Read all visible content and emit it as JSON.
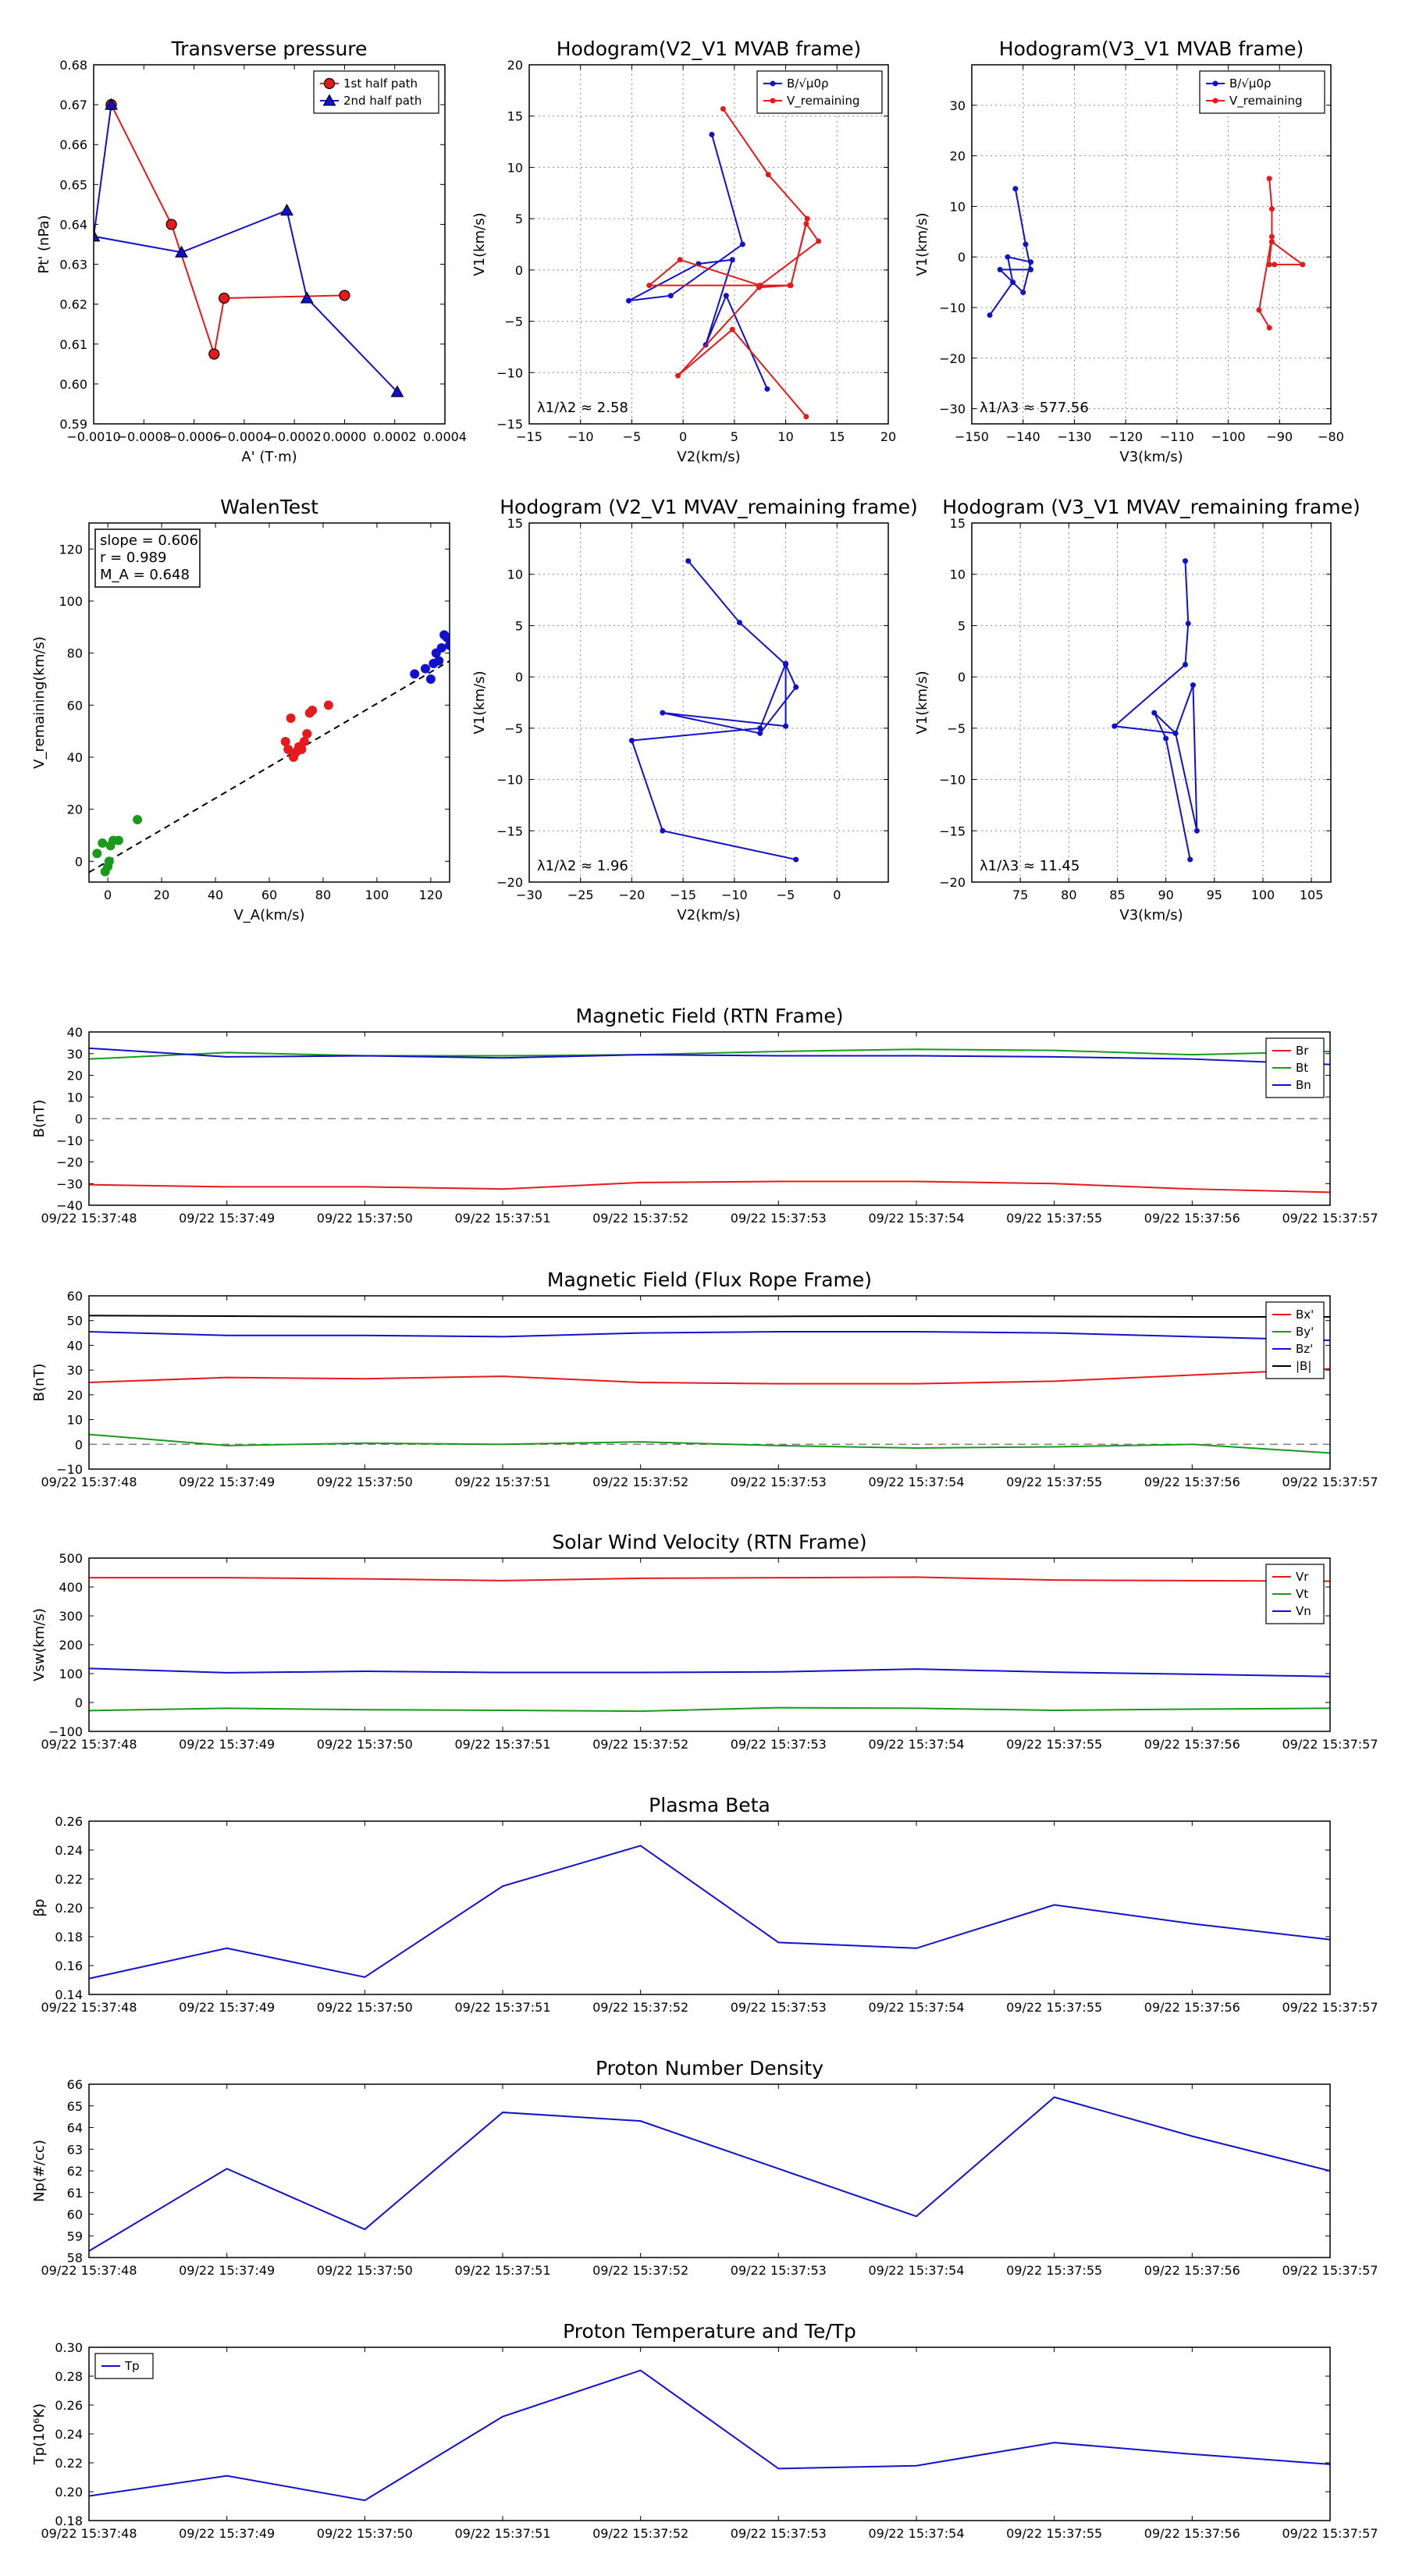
{
  "chart_data": [
    {
      "id": "transverse-pressure",
      "type": "line",
      "title": "Transverse pressure",
      "xlabel": "A' (T·m)",
      "ylabel": "Pt' (nPa)",
      "xlim": [
        -0.001,
        0.0004
      ],
      "ylim": [
        0.59,
        0.68
      ],
      "xticks": [
        -0.001,
        -0.0008,
        -0.0006,
        -0.0004,
        -0.0002,
        0.0,
        0.0002,
        0.0004
      ],
      "xtick_labels": [
        "−0.0010",
        "−0.0008",
        "−0.0006",
        "−0.0004",
        "−0.0002",
        "0.0000",
        "0.0002",
        "0.0004"
      ],
      "yticks": [
        0.59,
        0.6,
        0.61,
        0.62,
        0.63,
        0.64,
        0.65,
        0.66,
        0.67,
        0.68
      ],
      "ytick_labels": [
        "0.59",
        "0.60",
        "0.61",
        "0.62",
        "0.63",
        "0.64",
        "0.65",
        "0.66",
        "0.67",
        "0.68"
      ],
      "grid": false,
      "legend_position": "top-right",
      "series": [
        {
          "name": "1st half path",
          "color": "#e41a1c",
          "marker": "circle",
          "x": [
            -0.00093,
            -0.00093,
            -0.00069,
            -0.00052,
            -0.00048,
            0.0
          ],
          "y": [
            0.67,
            0.67,
            0.64,
            0.6075,
            0.6215,
            0.6222
          ]
        },
        {
          "name": "2nd half path",
          "color": "#1111cc",
          "marker": "triangle",
          "x": [
            0.00021,
            -0.00015,
            -0.00023,
            -0.00065,
            -0.001,
            -0.00093
          ],
          "y": [
            0.598,
            0.6215,
            0.6435,
            0.633,
            0.637,
            0.67
          ]
        }
      ]
    },
    {
      "id": "hodogram-v2v1-mvab",
      "type": "line",
      "title": "Hodogram(V2_V1 MVAB frame)",
      "xlabel": "V2(km/s)",
      "ylabel": "V1(km/s)",
      "xlim": [
        -15,
        20
      ],
      "ylim": [
        -15,
        20
      ],
      "xticks": [
        -15,
        -10,
        -5,
        0,
        5,
        10,
        15,
        20
      ],
      "xtick_labels": [
        "−15",
        "−10",
        "−5",
        "0",
        "5",
        "10",
        "15",
        "20"
      ],
      "yticks": [
        -15,
        -10,
        -5,
        0,
        5,
        10,
        15,
        20
      ],
      "ytick_labels": [
        "−15",
        "−10",
        "−5",
        "0",
        "5",
        "10",
        "15",
        "20"
      ],
      "grid": true,
      "legend_position": "top-right",
      "annotation": "λ1/λ2 ≈ 2.58",
      "series": [
        {
          "name": "B/√μ0ρ",
          "color": "#1111cc",
          "x": [
            2.8,
            5.8,
            -1.2,
            -5.3,
            1.5,
            4.8,
            2.2,
            4.2,
            8.2
          ],
          "y": [
            13.2,
            2.5,
            -2.5,
            -3.0,
            0.6,
            1.0,
            -7.3,
            -2.5,
            -11.6
          ]
        },
        {
          "name": "V_remaining",
          "color": "#e41a1c",
          "x": [
            3.9,
            8.3,
            12.1,
            10.5,
            12.0,
            13.2,
            7.5,
            -0.3,
            -3.3,
            10.4,
            7.4,
            -0.5,
            4.8,
            12.0
          ],
          "y": [
            15.7,
            9.3,
            5.0,
            -1.5,
            4.5,
            2.8,
            -1.5,
            1.0,
            -1.5,
            -1.5,
            -1.7,
            -10.3,
            -5.8,
            -14.3
          ]
        }
      ]
    },
    {
      "id": "hodogram-v3v1-mvab",
      "type": "line",
      "title": "Hodogram(V3_V1 MVAB frame)",
      "xlabel": "V3(km/s)",
      "ylabel": "V1(km/s)",
      "xlim": [
        -150,
        -80
      ],
      "ylim": [
        -33,
        38
      ],
      "xticks": [
        -150,
        -140,
        -130,
        -120,
        -110,
        -100,
        -90,
        -80
      ],
      "xtick_labels": [
        "−150",
        "−140",
        "−130",
        "−120",
        "−110",
        "−100",
        "−90",
        "−80"
      ],
      "yticks": [
        -30,
        -20,
        -10,
        0,
        10,
        20,
        30
      ],
      "ytick_labels": [
        "−30",
        "−20",
        "−10",
        "0",
        "10",
        "20",
        "30"
      ],
      "grid": true,
      "legend_position": "top-right",
      "annotation": "λ1/λ3 ≈ 577.56",
      "series": [
        {
          "name": "B/√μ0ρ",
          "color": "#1111cc",
          "x": [
            -141.5,
            -139.5,
            -138.5,
            -144.5,
            -140.0,
            -138.5,
            -143.0,
            -142.0,
            -146.5
          ],
          "y": [
            13.5,
            2.5,
            -2.5,
            -2.5,
            -7.0,
            -1.0,
            0.0,
            -5.0,
            -11.5
          ]
        },
        {
          "name": "V_remaining",
          "color": "#e41a1c",
          "x": [
            -92.0,
            -91.5,
            -91.5,
            -85.5,
            -91.0,
            -92.0,
            -91.5,
            -94.0,
            -92.0
          ],
          "y": [
            15.5,
            9.5,
            3.0,
            -1.5,
            -1.5,
            -1.5,
            4.0,
            -10.5,
            -14.0
          ]
        }
      ]
    },
    {
      "id": "walen-test",
      "type": "scatter",
      "title": "WalenTest",
      "xlabel": "V_A(km/s)",
      "ylabel": "V_remaining(km/s)",
      "xlim": [
        -7,
        127
      ],
      "ylim": [
        -8,
        130
      ],
      "xticks": [
        0,
        20,
        40,
        60,
        80,
        100,
        120
      ],
      "xtick_labels": [
        "0",
        "20",
        "40",
        "60",
        "80",
        "100",
        "120"
      ],
      "yticks": [
        0,
        20,
        40,
        60,
        80,
        100,
        120
      ],
      "ytick_labels": [
        "0",
        "20",
        "40",
        "60",
        "80",
        "100",
        "120"
      ],
      "grid": false,
      "annotation": [
        "slope = 0.606",
        "r = 0.989",
        "M_A = 0.648"
      ],
      "fit_line": {
        "slope": 0.606,
        "intercept": 0.0,
        "x_range": [
          -7,
          127
        ]
      },
      "series": [
        {
          "name": "green",
          "color": "#1a9a1a",
          "x": [
            -4,
            -2,
            1,
            2,
            4,
            11,
            0,
            -1,
            0.5
          ],
          "y": [
            3,
            7,
            6,
            8,
            8,
            16,
            -2,
            -4,
            0
          ]
        },
        {
          "name": "red",
          "color": "#e41a1c",
          "x": [
            68,
            69,
            70,
            71,
            73,
            74,
            75,
            76,
            82,
            66,
            67,
            72
          ],
          "y": [
            55,
            40,
            42,
            44,
            46,
            49,
            57,
            58,
            60,
            46,
            43,
            43
          ]
        },
        {
          "name": "blue",
          "color": "#1111cc",
          "x": [
            114,
            118,
            120,
            121,
            122,
            123,
            124,
            125,
            126,
            127
          ],
          "y": [
            72,
            74,
            70,
            76,
            80,
            77,
            82,
            87,
            86,
            83
          ]
        }
      ]
    },
    {
      "id": "hodogram-v2v1-mvav",
      "type": "line",
      "title": "Hodogram (V2_V1 MVAV_remaining frame)",
      "xlabel": "V2(km/s)",
      "ylabel": "V1(km/s)",
      "xlim": [
        -30,
        5
      ],
      "ylim": [
        -20,
        15
      ],
      "xticks": [
        -30,
        -25,
        -20,
        -15,
        -10,
        -5,
        0
      ],
      "xtick_labels": [
        "−30",
        "−25",
        "−20",
        "−15",
        "−10",
        "−5",
        "0"
      ],
      "yticks": [
        -20,
        -15,
        -10,
        -5,
        0,
        5,
        10,
        15
      ],
      "ytick_labels": [
        "−20",
        "−15",
        "−10",
        "−5",
        "0",
        "5",
        "10",
        "15"
      ],
      "grid": true,
      "annotation": "λ1/λ2 ≈ 1.96",
      "series": [
        {
          "name": "V_remaining",
          "color": "#1111cc",
          "x": [
            -14.5,
            -9.5,
            -5.0,
            -4.0,
            -7.5,
            -17.0,
            -5.0,
            -5.0,
            -7.5,
            -20.0,
            -17.0,
            -4.0
          ],
          "y": [
            11.3,
            5.3,
            1.2,
            -1.0,
            -5.5,
            -3.5,
            -4.8,
            1.3,
            -5.0,
            -6.2,
            -15.0,
            -17.8
          ]
        }
      ]
    },
    {
      "id": "hodogram-v3v1-mvav",
      "type": "line",
      "title": "Hodogram (V3_V1 MVAV_remaining frame)",
      "xlabel": "V3(km/s)",
      "ylabel": "V1(km/s)",
      "xlim": [
        70,
        107
      ],
      "ylim": [
        -20,
        15
      ],
      "xticks": [
        75,
        80,
        85,
        90,
        95,
        100,
        105
      ],
      "xtick_labels": [
        "75",
        "80",
        "85",
        "90",
        "95",
        "100",
        "105"
      ],
      "yticks": [
        -20,
        -15,
        -10,
        -5,
        0,
        5,
        10,
        15
      ],
      "ytick_labels": [
        "−20",
        "−15",
        "−10",
        "−5",
        "0",
        "5",
        "10",
        "15"
      ],
      "grid": true,
      "annotation": "λ1/λ3 ≈ 11.45",
      "series": [
        {
          "name": "V_remaining",
          "color": "#1111cc",
          "x": [
            92.0,
            92.3,
            92.0,
            84.7,
            91.0,
            92.8,
            93.2,
            91.0,
            88.8,
            90.0,
            92.5
          ],
          "y": [
            11.3,
            5.2,
            1.2,
            -4.8,
            -5.5,
            -0.8,
            -15.0,
            -5.5,
            -3.5,
            -6.0,
            -17.8
          ]
        }
      ]
    },
    {
      "id": "magnetic-field-rtn",
      "type": "line",
      "title": "Magnetic Field (RTN Frame)",
      "xlabel": "",
      "ylabel": "B(nT)",
      "ylim": [
        -40,
        40
      ],
      "yticks": [
        -40,
        -30,
        -20,
        -10,
        0,
        10,
        20,
        30,
        40
      ],
      "ytick_labels": [
        "−40",
        "−30",
        "−20",
        "−10",
        "0",
        "10",
        "20",
        "30",
        "40"
      ],
      "categories": [
        "09/22 15:37:48",
        "09/22 15:37:49",
        "09/22 15:37:50",
        "09/22 15:37:51",
        "09/22 15:37:52",
        "09/22 15:37:53",
        "09/22 15:37:54",
        "09/22 15:37:55",
        "09/22 15:37:56",
        "09/22 15:37:57"
      ],
      "zero_line": true,
      "legend_position": "top-right",
      "series": [
        {
          "name": "Br",
          "color": "#e41a1c",
          "values": [
            -30.5,
            -31.5,
            -31.5,
            -32.5,
            -29.5,
            -29.0,
            -29.0,
            -30.0,
            -32.5,
            -34.0
          ]
        },
        {
          "name": "Bt",
          "color": "#1a9a1a",
          "values": [
            27.5,
            30.5,
            29.0,
            29.0,
            29.5,
            31.0,
            32.0,
            31.5,
            29.5,
            31.0
          ]
        },
        {
          "name": "Bn",
          "color": "#1111cc",
          "values": [
            32.5,
            28.5,
            29.0,
            28.0,
            29.5,
            29.0,
            29.0,
            28.5,
            27.5,
            25.0
          ]
        }
      ]
    },
    {
      "id": "magnetic-field-flux-rope",
      "type": "line",
      "title": "Magnetic Field (Flux Rope Frame)",
      "xlabel": "",
      "ylabel": "B(nT)",
      "ylim": [
        -10,
        60
      ],
      "yticks": [
        -10,
        0,
        10,
        20,
        30,
        40,
        50,
        60
      ],
      "ytick_labels": [
        "−10",
        "0",
        "10",
        "20",
        "30",
        "40",
        "50",
        "60"
      ],
      "categories": [
        "09/22 15:37:48",
        "09/22 15:37:49",
        "09/22 15:37:50",
        "09/22 15:37:51",
        "09/22 15:37:52",
        "09/22 15:37:53",
        "09/22 15:37:54",
        "09/22 15:37:55",
        "09/22 15:37:56",
        "09/22 15:37:57"
      ],
      "zero_line": true,
      "legend_position": "top-right",
      "series": [
        {
          "name": "Bx'",
          "color": "#e41a1c",
          "values": [
            25.0,
            27.0,
            26.5,
            27.5,
            25.0,
            24.5,
            24.5,
            25.5,
            28.0,
            30.5
          ]
        },
        {
          "name": "By'",
          "color": "#1a9a1a",
          "values": [
            4.0,
            -0.5,
            0.5,
            0.0,
            1.0,
            -0.5,
            -1.5,
            -1.0,
            0.0,
            -3.5
          ]
        },
        {
          "name": "Bz'",
          "color": "#1111cc",
          "values": [
            45.5,
            44.0,
            44.0,
            43.5,
            45.0,
            45.5,
            45.5,
            45.0,
            43.5,
            42.0
          ]
        },
        {
          "name": "|B|",
          "color": "#000000",
          "values": [
            52.0,
            51.8,
            51.6,
            51.5,
            51.5,
            51.7,
            51.8,
            51.7,
            51.5,
            51.5
          ]
        }
      ]
    },
    {
      "id": "solar-wind-velocity",
      "type": "line",
      "title": "Solar Wind Velocity (RTN Frame)",
      "xlabel": "",
      "ylabel": "Vsw(km/s)",
      "ylim": [
        -100,
        500
      ],
      "yticks": [
        -100,
        0,
        100,
        200,
        300,
        400,
        500
      ],
      "ytick_labels": [
        "−100",
        "0",
        "100",
        "200",
        "300",
        "400",
        "500"
      ],
      "categories": [
        "09/22 15:37:48",
        "09/22 15:37:49",
        "09/22 15:37:50",
        "09/22 15:37:51",
        "09/22 15:37:52",
        "09/22 15:37:53",
        "09/22 15:37:54",
        "09/22 15:37:55",
        "09/22 15:37:56",
        "09/22 15:37:57"
      ],
      "zero_line": false,
      "legend_position": "top-right",
      "series": [
        {
          "name": "Vr",
          "color": "#e41a1c",
          "values": [
            432,
            432,
            428,
            422,
            430,
            432,
            434,
            424,
            422,
            420
          ]
        },
        {
          "name": "Vt",
          "color": "#1a9a1a",
          "values": [
            -28,
            -20,
            -25,
            -27,
            -30,
            -18,
            -20,
            -27,
            -23,
            -20
          ]
        },
        {
          "name": "Vn",
          "color": "#1111cc",
          "values": [
            118,
            103,
            108,
            104,
            104,
            106,
            116,
            105,
            98,
            90
          ]
        }
      ]
    },
    {
      "id": "plasma-beta",
      "type": "line",
      "title": "Plasma Beta",
      "xlabel": "",
      "ylabel": "βp",
      "ylim": [
        0.14,
        0.26
      ],
      "yticks": [
        0.14,
        0.16,
        0.18,
        0.2,
        0.22,
        0.24,
        0.26
      ],
      "ytick_labels": [
        "0.14",
        "0.16",
        "0.18",
        "0.20",
        "0.22",
        "0.24",
        "0.26"
      ],
      "categories": [
        "09/22 15:37:48",
        "09/22 15:37:49",
        "09/22 15:37:50",
        "09/22 15:37:51",
        "09/22 15:37:52",
        "09/22 15:37:53",
        "09/22 15:37:54",
        "09/22 15:37:55",
        "09/22 15:37:56",
        "09/22 15:37:57"
      ],
      "series": [
        {
          "name": "beta",
          "color": "#1111cc",
          "values": [
            0.151,
            0.172,
            0.152,
            0.215,
            0.243,
            0.176,
            0.172,
            0.202,
            0.189,
            0.178
          ]
        }
      ]
    },
    {
      "id": "proton-number-density",
      "type": "line",
      "title": "Proton Number Density",
      "xlabel": "",
      "ylabel": "Np(#/cc)",
      "ylim": [
        58,
        66
      ],
      "yticks": [
        58,
        59,
        60,
        61,
        62,
        63,
        64,
        65,
        66
      ],
      "ytick_labels": [
        "58",
        "59",
        "60",
        "61",
        "62",
        "63",
        "64",
        "65",
        "66"
      ],
      "categories": [
        "09/22 15:37:48",
        "09/22 15:37:49",
        "09/22 15:37:50",
        "09/22 15:37:51",
        "09/22 15:37:52",
        "09/22 15:37:53",
        "09/22 15:37:54",
        "09/22 15:37:55",
        "09/22 15:37:56",
        "09/22 15:37:57"
      ],
      "series": [
        {
          "name": "Np",
          "color": "#1111cc",
          "values": [
            58.3,
            62.1,
            59.3,
            64.7,
            64.3,
            62.1,
            59.9,
            65.4,
            63.6,
            62.0
          ]
        }
      ]
    },
    {
      "id": "proton-temperature",
      "type": "line",
      "title": "Proton Temperature and Te/Tp",
      "xlabel": "",
      "ylabel": "Tp(10⁶K)",
      "ylim": [
        0.18,
        0.3
      ],
      "yticks": [
        0.18,
        0.2,
        0.22,
        0.24,
        0.26,
        0.28,
        0.3
      ],
      "ytick_labels": [
        "0.18",
        "0.20",
        "0.22",
        "0.24",
        "0.26",
        "0.28",
        "0.30"
      ],
      "categories": [
        "09/22 15:37:48",
        "09/22 15:37:49",
        "09/22 15:37:50",
        "09/22 15:37:51",
        "09/22 15:37:52",
        "09/22 15:37:53",
        "09/22 15:37:54",
        "09/22 15:37:55",
        "09/22 15:37:56",
        "09/22 15:37:57"
      ],
      "legend_position": "top-left",
      "series": [
        {
          "name": "Tp",
          "color": "#1111cc",
          "values": [
            0.197,
            0.211,
            0.194,
            0.252,
            0.284,
            0.216,
            0.218,
            0.234,
            0.226,
            0.219
          ]
        }
      ]
    }
  ]
}
